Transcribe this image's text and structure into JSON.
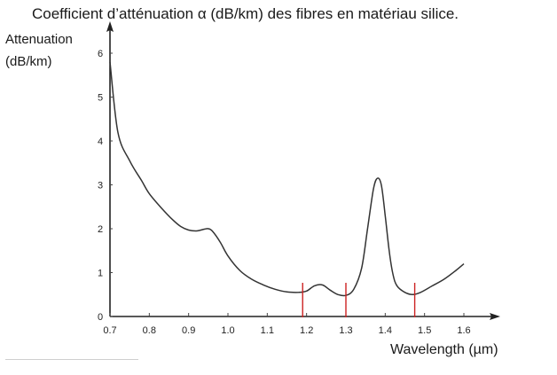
{
  "chart_data": {
    "type": "line",
    "title": "Coefficient d’atténuation α (dB/km) des fibres en matériau silice.",
    "ylabel_line1": "Attenuation",
    "ylabel_line2": "(dB/km)",
    "xlabel": "Wavelength (µm)",
    "xlim": [
      0.7,
      1.6
    ],
    "ylim": [
      0,
      6
    ],
    "x_ticks": [
      "0.7",
      "0.8",
      "0.9",
      "1.0",
      "1.1",
      "1.2",
      "1.3",
      "1.4",
      "1.5",
      "1.6"
    ],
    "y_ticks": [
      "0",
      "1",
      "2",
      "3",
      "4",
      "5",
      "6"
    ],
    "grid": false,
    "series": [
      {
        "color": "#333333",
        "x": [
          0.7,
          0.72,
          0.75,
          0.78,
          0.8,
          0.83,
          0.86,
          0.88,
          0.9,
          0.92,
          0.94,
          0.95,
          0.96,
          0.98,
          1.0,
          1.03,
          1.06,
          1.09,
          1.12,
          1.15,
          1.18,
          1.2,
          1.22,
          1.24,
          1.26,
          1.28,
          1.3,
          1.32,
          1.34,
          1.355,
          1.37,
          1.38,
          1.39,
          1.4,
          1.41,
          1.42,
          1.43,
          1.45,
          1.47,
          1.49,
          1.52,
          1.55,
          1.58,
          1.6
        ],
        "y": [
          5.8,
          4.2,
          3.55,
          3.1,
          2.8,
          2.48,
          2.2,
          2.05,
          1.97,
          1.95,
          1.99,
          2.0,
          1.95,
          1.7,
          1.38,
          1.05,
          0.85,
          0.72,
          0.62,
          0.56,
          0.55,
          0.58,
          0.7,
          0.72,
          0.6,
          0.5,
          0.48,
          0.62,
          1.1,
          2.0,
          2.9,
          3.15,
          3.0,
          2.3,
          1.5,
          0.95,
          0.7,
          0.55,
          0.5,
          0.55,
          0.7,
          0.85,
          1.05,
          1.2
        ]
      }
    ],
    "markers": [
      {
        "x": 1.19,
        "color": "#cc2222"
      },
      {
        "x": 1.3,
        "color": "#cc2222"
      },
      {
        "x": 1.475,
        "color": "#cc2222"
      }
    ]
  }
}
